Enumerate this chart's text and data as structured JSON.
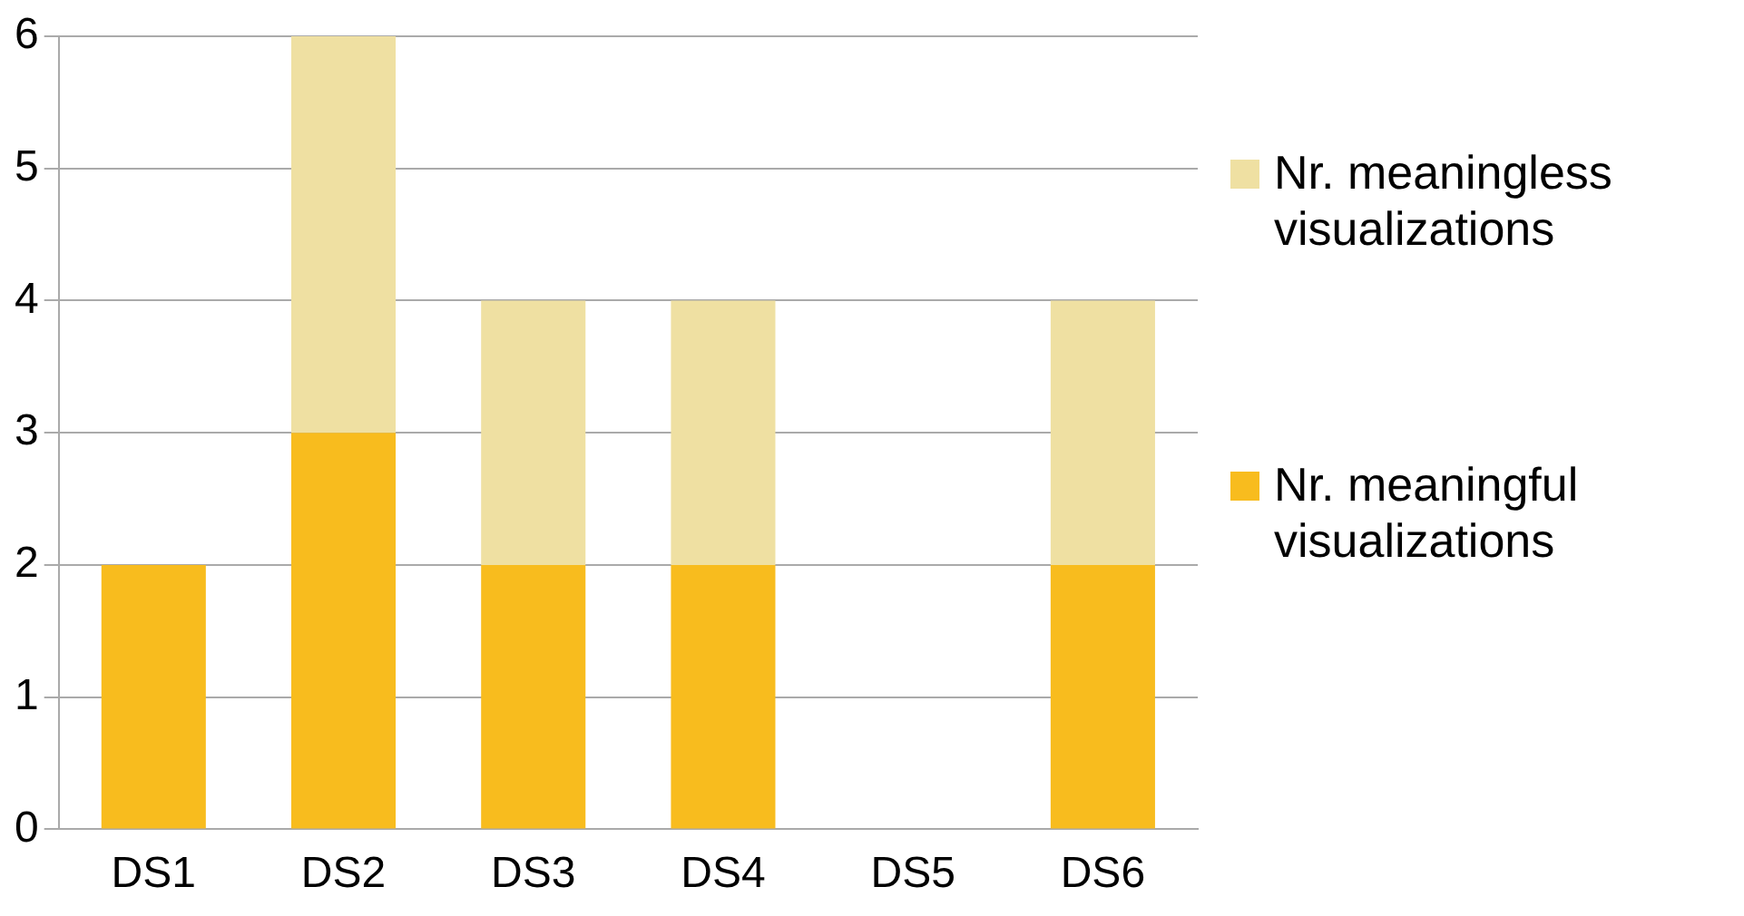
{
  "chart_data": {
    "type": "bar",
    "stacked": true,
    "categories": [
      "DS1",
      "DS2",
      "DS3",
      "DS4",
      "DS5",
      "DS6"
    ],
    "series": [
      {
        "name": "Nr. meaningful visualizations",
        "color": "#f8bc1e",
        "values": [
          2,
          3,
          2,
          2,
          0,
          2
        ]
      },
      {
        "name": "Nr. meaningless visualizations",
        "color": "#efe0a2",
        "values": [
          0,
          3,
          2,
          2,
          0,
          2
        ]
      }
    ],
    "ylim": [
      0,
      6
    ],
    "yticks": [
      0,
      1,
      2,
      3,
      4,
      5,
      6
    ],
    "grid": "y",
    "legend": "right"
  }
}
